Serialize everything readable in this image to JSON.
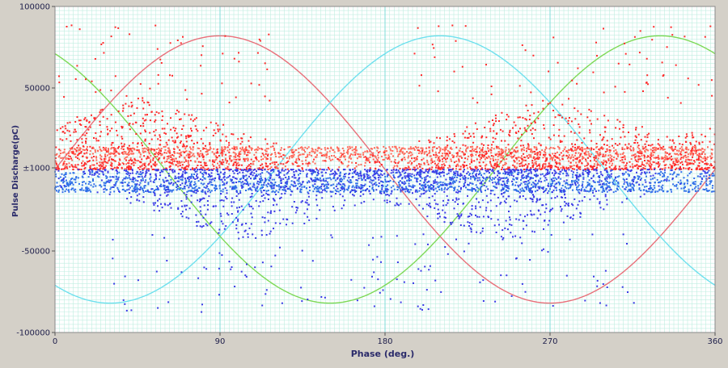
{
  "chart_data": {
    "type": "scatter",
    "title": "",
    "xlabel": "Phase (deg.)",
    "ylabel": "Pulse Discharge(pC)",
    "xlim": [
      0,
      360
    ],
    "ylim": [
      -100000,
      100000
    ],
    "x_ticks": [
      {
        "value": 0,
        "label": "0"
      },
      {
        "value": 90,
        "label": "90"
      },
      {
        "value": 180,
        "label": "180"
      },
      {
        "value": 270,
        "label": "270"
      },
      {
        "value": 360,
        "label": "360"
      }
    ],
    "y_ticks": [
      {
        "value": 100000,
        "label": "100000"
      },
      {
        "value": 50000,
        "label": "50000"
      },
      {
        "value": 1000,
        "label": "±1000"
      },
      {
        "value": -50000,
        "label": "-50000"
      },
      {
        "value": -100000,
        "label": "-100000"
      }
    ],
    "grid": true,
    "plot_background": "#ffffff",
    "grid_color": "#bfeee0",
    "major_grid_color": "#7fdcd8",
    "reference_waves": [
      {
        "color": "#e8707a",
        "amplitude": 82000,
        "peak_phase_deg": 90
      },
      {
        "color": "#6fe0ee",
        "amplitude": 82000,
        "peak_phase_deg": 210
      },
      {
        "color": "#7ed957",
        "amplitude": 82000,
        "peak_phase_deg": 330
      }
    ],
    "series": [
      {
        "color": "#ff2a2a",
        "core_color": "#ff6a5a",
        "polarity": "positive",
        "core_band": [
          0,
          14000
        ],
        "typical_max": 45000,
        "outlier_max": 90000,
        "density_peaks_deg": [
          45,
          270
        ]
      },
      {
        "color": "#3a3ae6",
        "core_color": "#2f6fe8",
        "polarity": "negative",
        "core_band": [
          -14000,
          0
        ],
        "typical_min": -45000,
        "outlier_min": -88000,
        "density_peaks_deg": [
          105,
          245
        ]
      }
    ]
  }
}
